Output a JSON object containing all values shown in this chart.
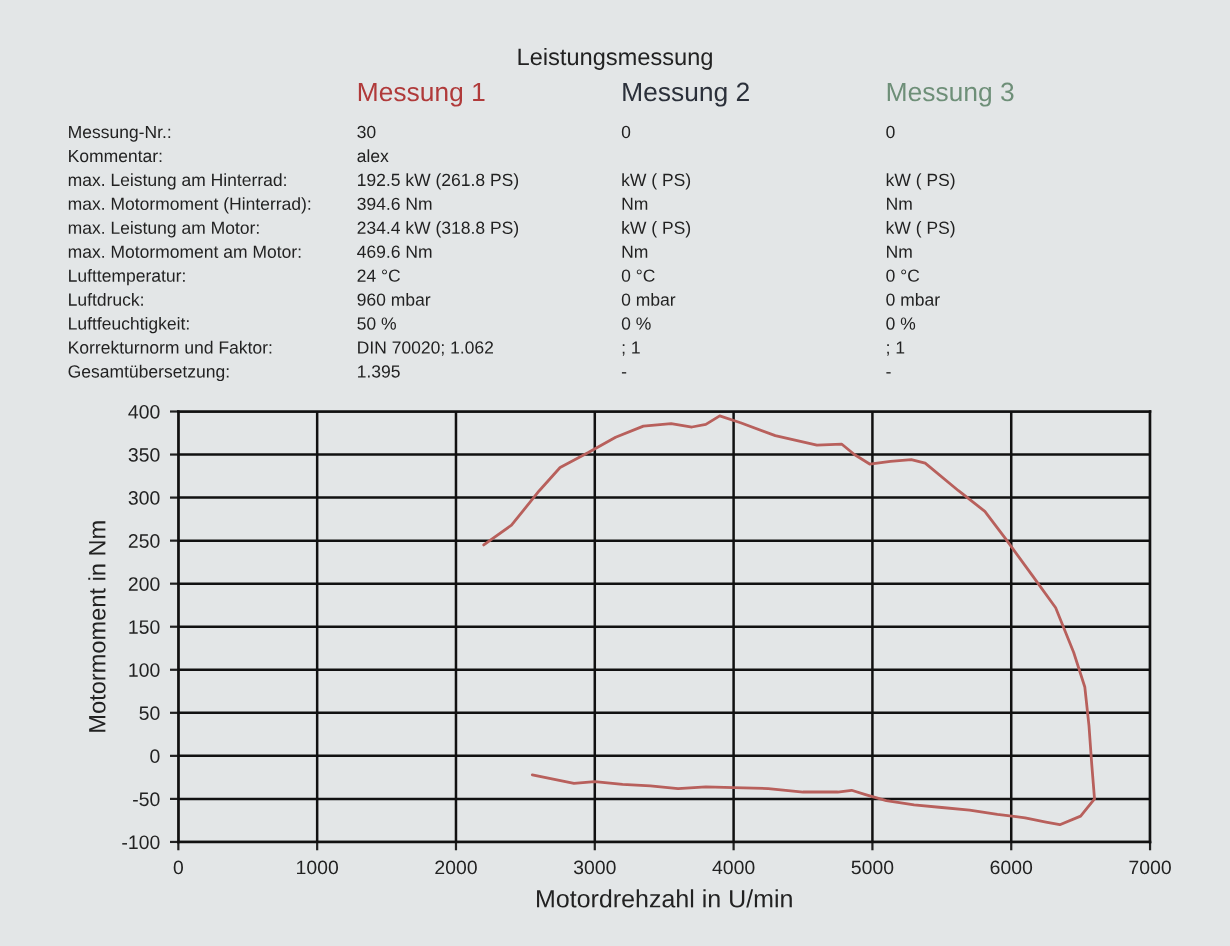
{
  "chart_data": [
    {
      "type": "other",
      "title": "Leistungsmessung",
      "categories": [
        "Messung 1",
        "Messung 2",
        "Messung 3"
      ],
      "colors": [
        "#b03a3a",
        "#2b303a",
        "#6e8f78"
      ],
      "y_categories": [
        "Messung-Nr.:",
        "Kommentar:",
        "max. Leistung am Hinterrad:",
        "max. Motormoment (Hinterrad):",
        "max. Leistung am Motor:",
        "max. Motormoment am Motor:",
        "Lufttemperatur:",
        "Luftdruck:",
        "Luftfeuchtigkeit:",
        "Korrekturnorm und Faktor:",
        "Gesamtübersetzung:"
      ],
      "cell_labels": [
        [
          "30",
          "0",
          "0"
        ],
        [
          "alex",
          null,
          null
        ],
        [
          "192.5 kW (261.8 PS)",
          "kW ( PS)",
          "kW ( PS)"
        ],
        [
          "394.6 Nm",
          "Nm",
          "Nm"
        ],
        [
          "234.4 kW (318.8 PS)",
          "kW ( PS)",
          "kW ( PS)"
        ],
        [
          "469.6 Nm",
          "Nm",
          "Nm"
        ],
        [
          "24 °C",
          "0 °C",
          "0 °C"
        ],
        [
          "960 mbar",
          "0 mbar",
          "0 mbar"
        ],
        [
          "50 %",
          "0 %",
          "0 %"
        ],
        [
          "DIN 70020; 1.062",
          "; 1",
          "; 1"
        ],
        [
          "1.395",
          "-",
          "-"
        ]
      ]
    },
    {
      "type": "line",
      "xlabel": "Motordrehzahl in U/min",
      "ylabel": "Motormoment in Nm",
      "xlim": [
        0,
        7000
      ],
      "xticks": [
        0,
        1000,
        2000,
        3000,
        4000,
        5000,
        6000,
        7000
      ],
      "ylim": [
        -100,
        400
      ],
      "yticks": [
        -100,
        -50,
        0,
        50,
        100,
        150,
        200,
        250,
        300,
        350,
        400
      ],
      "grid": true,
      "series": [
        {
          "color": "#b8605c",
          "x": [
            2200,
            2400,
            2600,
            2750,
            2950,
            3150,
            3350,
            3550,
            3700,
            3800,
            3900,
            4050,
            4300,
            4600,
            4780,
            4870,
            4980,
            5130,
            5280,
            5380,
            5620,
            5810,
            5960,
            6150,
            6320,
            6450,
            6530,
            6560,
            6580,
            6600,
            6500,
            6350,
            6250,
            6100,
            5900,
            5700,
            5500,
            5300,
            5100,
            4950,
            4850,
            4750,
            4500,
            4250,
            4000,
            3800,
            3600,
            3400,
            3200,
            3000,
            2850,
            2700,
            2550
          ],
          "values": [
            245,
            268,
            308,
            335,
            352,
            370,
            383,
            386,
            382,
            385,
            395,
            387,
            372,
            361,
            362,
            350,
            339,
            342,
            344,
            340,
            308,
            284,
            252,
            210,
            172,
            120,
            80,
            35,
            -10,
            -50,
            -70,
            -80,
            -77,
            -72,
            -68,
            -63,
            -60,
            -57,
            -52,
            -45,
            -40,
            -42,
            -42,
            -38,
            -37,
            -36,
            -38,
            -35,
            -33,
            -30,
            -32,
            -27,
            -22
          ]
        }
      ]
    }
  ]
}
